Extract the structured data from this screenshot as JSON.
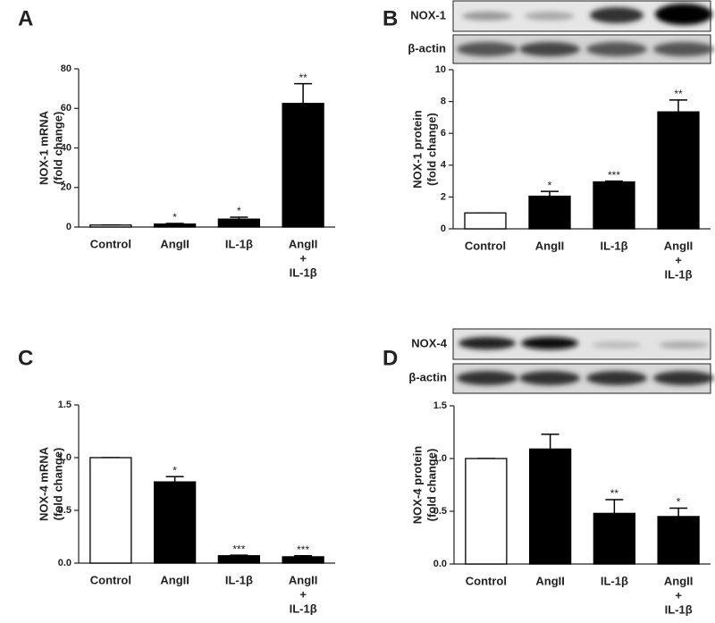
{
  "chart_data": [
    {
      "type": "bar",
      "panel_label": "A",
      "y_label": [
        "NOX-1 mRNA",
        "(fold change)"
      ],
      "categories": [
        [
          "Control"
        ],
        [
          "AngII"
        ],
        [
          "IL-1β"
        ],
        [
          "AngII",
          "+",
          "IL-1β"
        ]
      ],
      "values": [
        1,
        1.5,
        4,
        62.5
      ],
      "errors": [
        0,
        0.3,
        1,
        10
      ],
      "significance": [
        null,
        "*",
        "*",
        "**"
      ],
      "colors": [
        "#ffffff",
        "#000000",
        "#000000",
        "#000000"
      ],
      "ylim": [
        0,
        80
      ],
      "yticks": [
        0,
        20,
        40,
        60,
        80
      ]
    },
    {
      "type": "bar",
      "panel_label": "B",
      "y_label": [
        "NOX-1 protein",
        "(fold change)"
      ],
      "blot_labels": [
        "NOX-1",
        "β-actin"
      ],
      "categories": [
        [
          "Control"
        ],
        [
          "AngII"
        ],
        [
          "IL-1β"
        ],
        [
          "AngII",
          "+",
          "IL-1β"
        ]
      ],
      "values": [
        1,
        2.05,
        2.95,
        7.35
      ],
      "errors": [
        0,
        0.3,
        0.05,
        0.75
      ],
      "significance": [
        null,
        "*",
        "***",
        "**"
      ],
      "colors": [
        "#ffffff",
        "#000000",
        "#000000",
        "#000000"
      ],
      "ylim": [
        0,
        10
      ],
      "yticks": [
        0,
        2,
        4,
        6,
        8,
        10
      ]
    },
    {
      "type": "bar",
      "panel_label": "C",
      "y_label": [
        "NOX-4 mRNA",
        "(fold change)"
      ],
      "categories": [
        [
          "Control"
        ],
        [
          "AngII"
        ],
        [
          "IL-1β"
        ],
        [
          "AngII",
          "+",
          "IL-1β"
        ]
      ],
      "values": [
        1,
        0.77,
        0.07,
        0.06
      ],
      "errors": [
        0,
        0.05,
        0.005,
        0.01
      ],
      "significance": [
        null,
        "*",
        "***",
        "***"
      ],
      "colors": [
        "#ffffff",
        "#000000",
        "#000000",
        "#000000"
      ],
      "ylim": [
        0,
        1.5
      ],
      "yticks": [
        {
          "value": 0,
          "label": "0.0"
        },
        0.5,
        {
          "value": 1,
          "label": "1.0"
        },
        1.5
      ]
    },
    {
      "type": "bar",
      "panel_label": "D",
      "y_label": [
        "NOX-4 protein",
        "(fold change)"
      ],
      "blot_labels": [
        "NOX-4",
        "β-actin"
      ],
      "categories": [
        [
          "Control"
        ],
        [
          "AngII"
        ],
        [
          "IL-1β"
        ],
        [
          "AngII",
          "+",
          "IL-1β"
        ]
      ],
      "values": [
        1,
        1.09,
        0.48,
        0.45
      ],
      "errors": [
        0,
        0.14,
        0.13,
        0.08
      ],
      "significance": [
        null,
        null,
        "**",
        "*"
      ],
      "colors": [
        "#ffffff",
        "#000000",
        "#000000",
        "#000000"
      ],
      "ylim": [
        0,
        1.5
      ],
      "yticks": [
        {
          "value": 0,
          "label": "0.0"
        },
        0.5,
        {
          "value": 1,
          "label": "1.0"
        },
        1.5
      ]
    }
  ]
}
